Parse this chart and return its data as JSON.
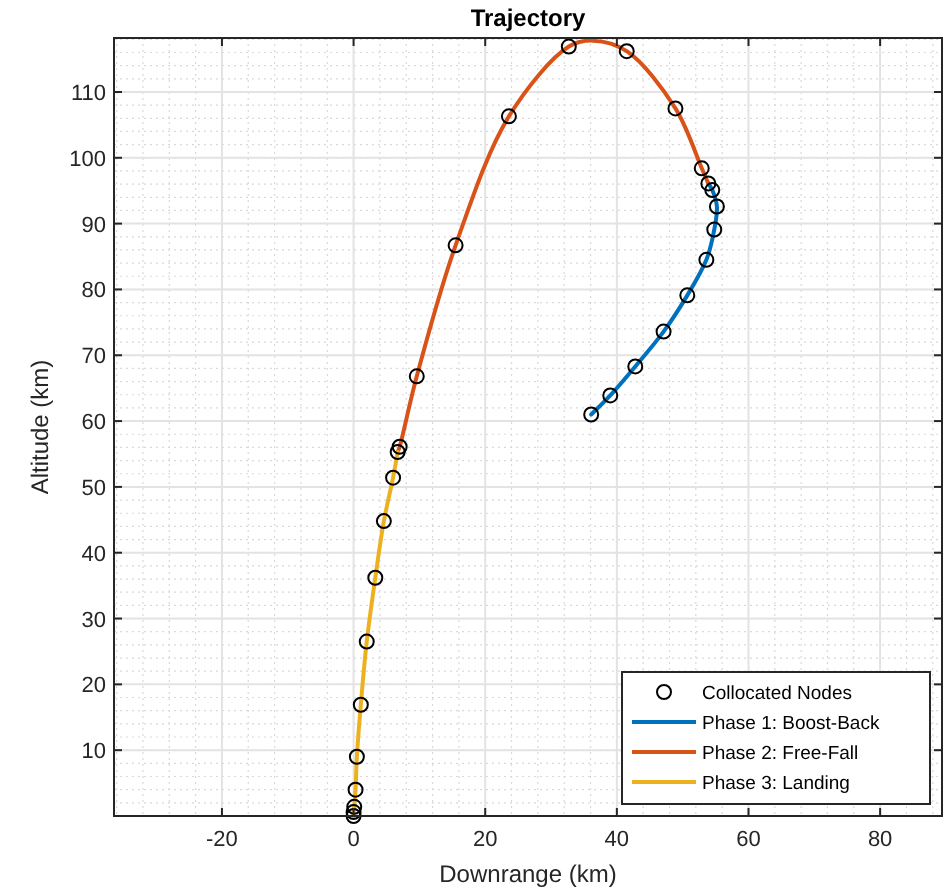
{
  "chart_data": {
    "type": "line",
    "title": "Trajectory",
    "xlabel": "Downrange (km)",
    "ylabel": "Altitude (km)",
    "xlim": [
      -36.4,
      89.4
    ],
    "ylim": [
      0,
      118.2
    ],
    "xticks": [
      -20,
      0,
      20,
      40,
      60,
      80
    ],
    "yticks": [
      10,
      20,
      30,
      40,
      50,
      60,
      70,
      80,
      90,
      100,
      110
    ],
    "grid": true,
    "legend": "bottom right",
    "series": [
      {
        "name": "Collocated Nodes",
        "type": "scatter",
        "marker": "circle",
        "color": "#000000",
        "x": [
          36.1,
          39.0,
          42.8,
          47.1,
          50.7,
          53.6,
          54.8,
          55.2,
          54.5,
          53.9,
          52.9,
          48.9,
          41.5,
          32.7,
          23.6,
          15.5,
          9.6,
          7.0,
          6.7,
          6.0,
          4.6,
          3.3,
          2.0,
          1.1,
          0.5,
          0.3,
          0.1,
          0,
          0
        ],
        "values": [
          61.0,
          63.9,
          68.3,
          73.6,
          79.1,
          84.5,
          89.1,
          92.6,
          95.1,
          96.1,
          98.4,
          107.5,
          116.2,
          116.9,
          106.3,
          86.7,
          66.8,
          56.1,
          55.3,
          51.4,
          44.8,
          36.2,
          26.5,
          16.9,
          9.0,
          4.0,
          1.4,
          0.6,
          0
        ]
      },
      {
        "name": "Phase 1: Boost-Back",
        "marker": "none",
        "color": "#0072bd",
        "x": [
          36.1,
          39.0,
          42.8,
          47.1,
          50.7,
          53.6,
          54.8,
          55.2,
          54.5,
          53.9
        ],
        "values": [
          61.0,
          63.9,
          68.3,
          73.6,
          79.1,
          84.5,
          89.1,
          92.6,
          95.1,
          96.1
        ]
      },
      {
        "name": "Phase 2: Free-Fall",
        "marker": "none",
        "color": "#d95319",
        "x": [
          53.9,
          52.9,
          48.9,
          41.5,
          36.4,
          32.7,
          23.6,
          15.5,
          9.6,
          7.0,
          6.7
        ],
        "values": [
          96.1,
          98.4,
          107.5,
          116.2,
          117.8,
          116.9,
          106.3,
          86.7,
          66.8,
          56.1,
          55.3
        ]
      },
      {
        "name": "Phase 3: Landing",
        "marker": "none",
        "color": "#edb120",
        "x": [
          6.7,
          6.0,
          4.6,
          3.3,
          2.0,
          1.1,
          0.5,
          0.3,
          0.1,
          0,
          0
        ],
        "values": [
          55.3,
          51.4,
          44.8,
          36.2,
          26.5,
          16.9,
          9.0,
          4.0,
          1.4,
          0.6,
          0
        ]
      }
    ]
  }
}
